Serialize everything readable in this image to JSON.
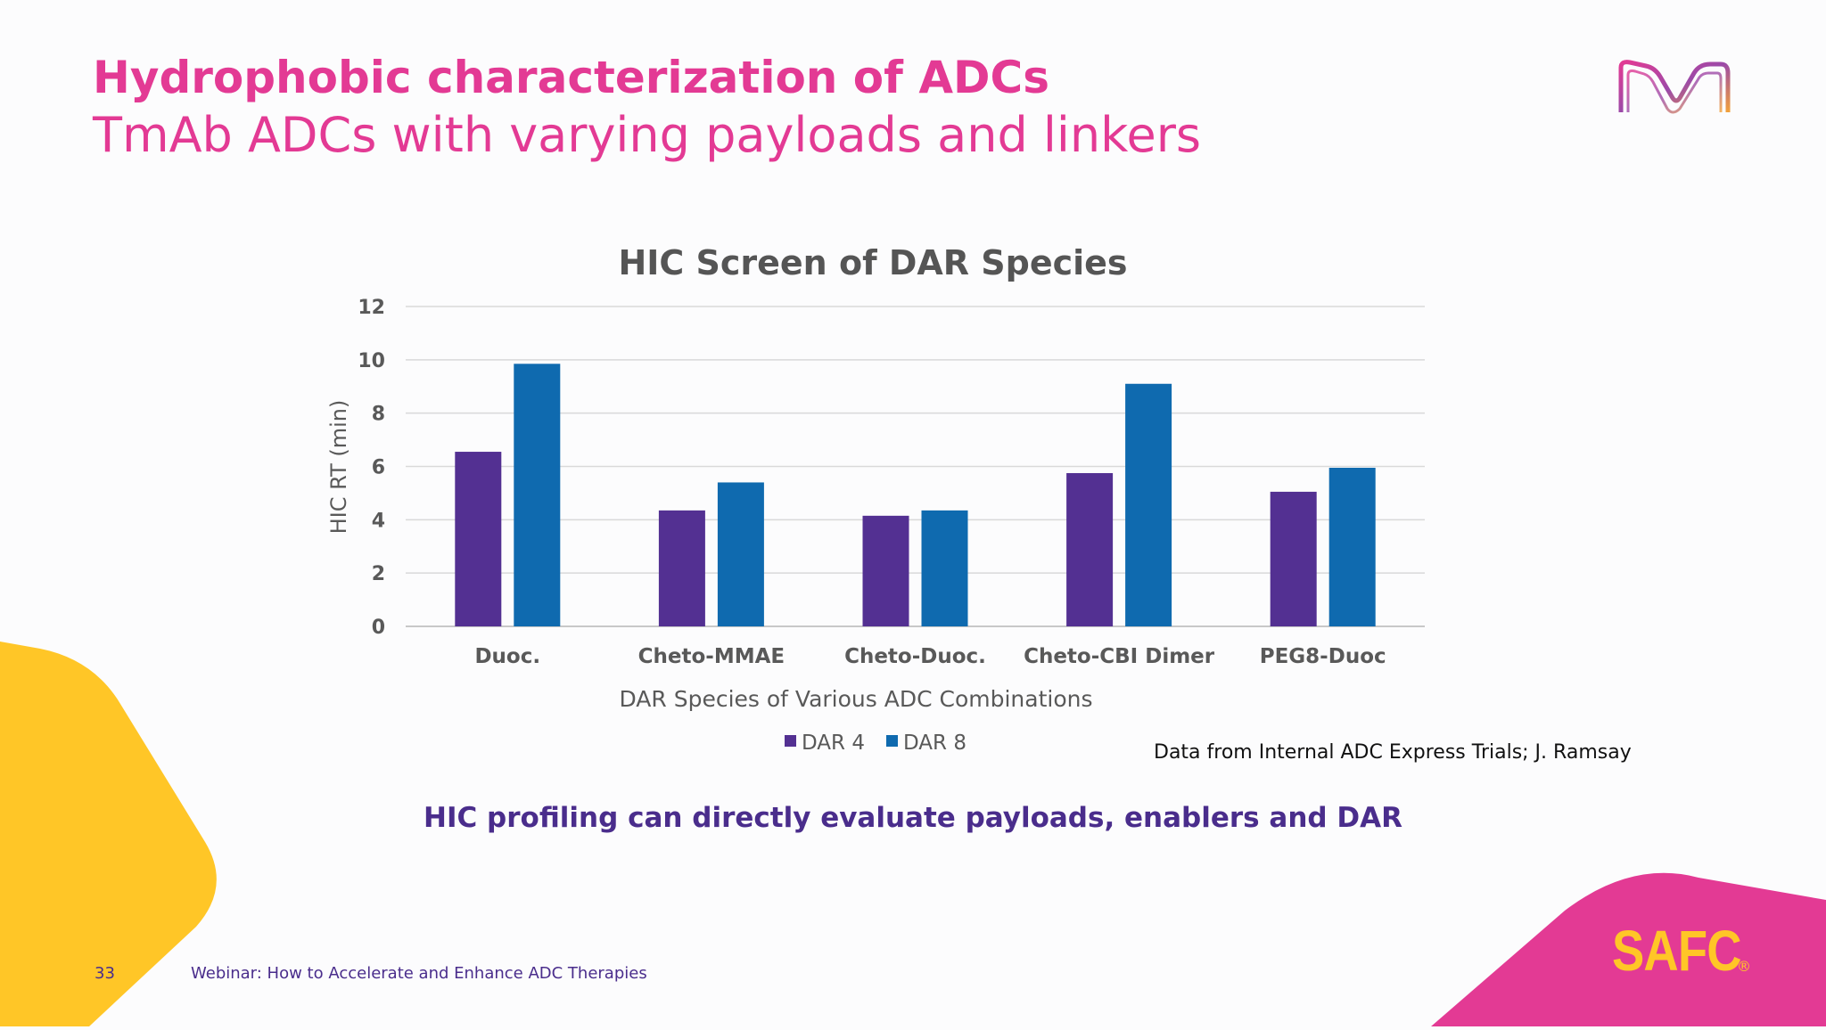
{
  "slide": {
    "title": "Hydrophobic characterization of ADCs",
    "subtitle": "TmAb ADCs with varying payloads and linkers",
    "source_note": "Data from Internal ADC Express Trials; J. Ramsay",
    "conclusion": "HIC profiling can directly evaluate payloads, enablers and DAR",
    "page_number": "33",
    "footer": "Webinar: How to Accelerate and Enhance ADC Therapies",
    "brand": "SAFC",
    "brand_mark": "®"
  },
  "colors": {
    "accent_pink": "#e33a94",
    "accent_purple": "#4a2d8c",
    "accent_yellow": "#ffc627"
  },
  "chart_data": {
    "type": "bar",
    "title": "HIC Screen of DAR Species",
    "xlabel": "DAR Species of Various ADC Combinations",
    "ylabel": "HIC RT (min)",
    "ylim": [
      0,
      12
    ],
    "yticks": [
      0,
      2,
      4,
      6,
      8,
      10,
      12
    ],
    "grid": true,
    "legend_position": "bottom",
    "categories": [
      "Duoc.",
      "Cheto-MMAE",
      "Cheto-Duoc.",
      "Cheto-CBI Dimer",
      "PEG8-Duoc"
    ],
    "series": [
      {
        "name": "DAR 4",
        "color": "#533092",
        "values": [
          6.55,
          4.35,
          4.15,
          5.75,
          5.05
        ]
      },
      {
        "name": "DAR 8",
        "color": "#0f6aaf",
        "values": [
          9.85,
          5.4,
          4.35,
          9.1,
          5.95
        ]
      }
    ]
  }
}
